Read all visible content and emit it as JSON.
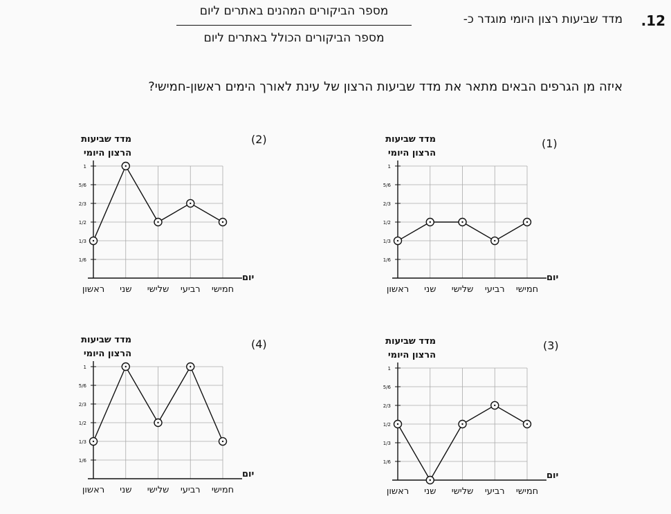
{
  "question": {
    "number": ".12",
    "definition_text": "מדד שביעות רצון היומי מוגדר כ-",
    "fraction_numerator": "מספר הביקורים המהנים באתרים ליום",
    "fraction_denominator": "מספר הביקורים הכולל באתרים ליום",
    "prompt": "איזה מן הגרפים הבאים מתאר את מדד שביעות הרצון של עינת לאורך הימים ראשון-חמישי?"
  },
  "chart_data": [
    {
      "type": "line",
      "label": "(1)",
      "title_line1": "מדד שביעות",
      "title_line2": "הרצון היומי",
      "x_axis_label": "יום",
      "categories": [
        "ראשון",
        "שני",
        "שלישי",
        "רביעי",
        "חמישי"
      ],
      "y_ticks": [
        "1",
        "5/6",
        "2/3",
        "1/2",
        "1/3",
        "1/6"
      ],
      "values": [
        0.333,
        0.5,
        0.5,
        0.333,
        0.5
      ],
      "ylim": [
        0,
        1
      ]
    },
    {
      "type": "line",
      "label": "(2)",
      "title_line1": "מדד שביעות",
      "title_line2": "הרצון היומי",
      "x_axis_label": "יום",
      "categories": [
        "ראשון",
        "שני",
        "שלישי",
        "רביעי",
        "חמישי"
      ],
      "y_ticks": [
        "1",
        "5/6",
        "2/3",
        "1/2",
        "1/3",
        "1/6"
      ],
      "values": [
        0.333,
        1,
        0.5,
        0.667,
        0.5
      ],
      "ylim": [
        0,
        1
      ]
    },
    {
      "type": "line",
      "label": "(3)",
      "title_line1": "מדד שביעות",
      "title_line2": "הרצון היומי",
      "x_axis_label": "יום",
      "categories": [
        "ראשון",
        "שני",
        "שלישי",
        "רביעי",
        "חמישי"
      ],
      "y_ticks": [
        "1",
        "5/6",
        "2/3",
        "1/2",
        "1/3",
        "1/6"
      ],
      "values": [
        0.5,
        0,
        0.5,
        0.667,
        0.5
      ],
      "ylim": [
        0,
        1
      ]
    },
    {
      "type": "line",
      "label": "(4)",
      "title_line1": "מדד שביעות",
      "title_line2": "הרצון היומי",
      "x_axis_label": "יום",
      "categories": [
        "ראשון",
        "שני",
        "שלישי",
        "רביעי",
        "חמישי"
      ],
      "y_ticks": [
        "1",
        "5/6",
        "2/3",
        "1/2",
        "1/3",
        "1/6"
      ],
      "values": [
        0.333,
        1,
        0.5,
        1,
        0.333
      ],
      "ylim": [
        0,
        1
      ]
    }
  ]
}
